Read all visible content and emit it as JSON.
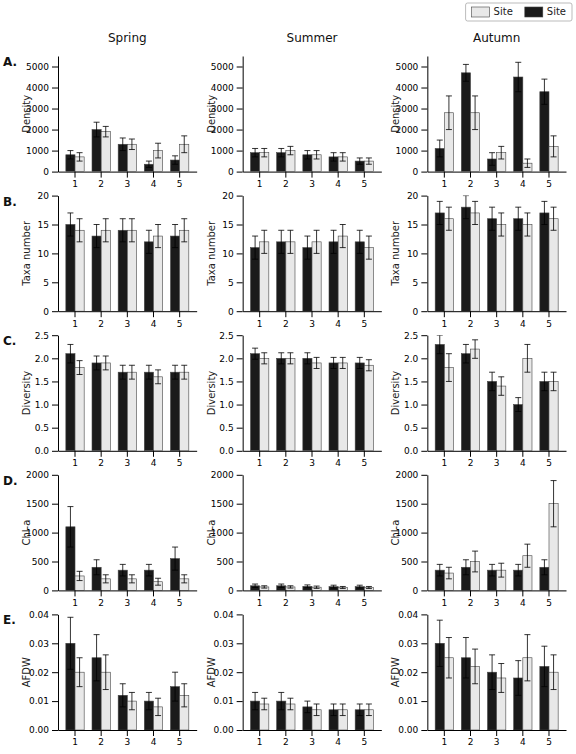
{
  "chart_data": [
    {
      "type": "bar",
      "title": "Spring",
      "annotations": [
        "A."
      ],
      "ylabel": "Density",
      "legend": "upper right",
      "categories": [
        1,
        2,
        3,
        4,
        5
      ],
      "series": [
        {
          "name": "Site",
          "color": "#1a1a1a",
          "values": [
            800,
            2000,
            1300,
            350,
            550
          ],
          "errors": [
            200,
            350,
            300,
            150,
            200
          ]
        },
        {
          "name": "Site",
          "color": "#e8e8e8",
          "values": [
            700,
            1900,
            1300,
            1000,
            1300
          ],
          "errors": [
            200,
            250,
            250,
            350,
            400
          ]
        }
      ],
      "ylim": [
        0,
        5500
      ],
      "yticks": [
        0,
        1000,
        2000,
        3000,
        4000,
        5000
      ]
    },
    {
      "type": "bar",
      "title": "Summer",
      "ylabel": "Density",
      "categories": [
        1,
        2,
        3,
        4,
        5
      ],
      "series": [
        {
          "name": "Site",
          "color": "#1a1a1a",
          "values": [
            900,
            900,
            800,
            700,
            500
          ],
          "errors": [
            200,
            200,
            200,
            200,
            150
          ]
        },
        {
          "name": "Site",
          "color": "#e8e8e8",
          "values": [
            900,
            1000,
            800,
            700,
            500
          ],
          "errors": [
            200,
            200,
            200,
            200,
            150
          ]
        }
      ],
      "ylim": [
        0,
        5500
      ],
      "yticks": [
        0,
        1000,
        2000,
        3000,
        4000,
        5000
      ]
    },
    {
      "type": "bar",
      "title": "Autumn",
      "ylabel": "Density",
      "categories": [
        1,
        2,
        3,
        4,
        5
      ],
      "series": [
        {
          "name": "Site",
          "color": "#1a1a1a",
          "values": [
            1100,
            4700,
            600,
            4500,
            3800
          ],
          "errors": [
            400,
            400,
            300,
            700,
            600
          ]
        },
        {
          "name": "Site",
          "color": "#e8e8e8",
          "values": [
            2800,
            2800,
            900,
            400,
            1200
          ],
          "errors": [
            800,
            800,
            300,
            200,
            500
          ]
        }
      ],
      "ylim": [
        0,
        5500
      ],
      "yticks": [
        0,
        1000,
        2000,
        3000,
        4000,
        5000
      ]
    },
    {
      "type": "bar",
      "annotations": [
        "B."
      ],
      "ylabel": "Taxa number",
      "categories": [
        1,
        2,
        3,
        4,
        5
      ],
      "series": [
        {
          "name": "Site",
          "color": "#1a1a1a",
          "values": [
            15,
            13,
            14,
            12,
            13
          ],
          "errors": [
            2,
            2,
            2,
            2,
            2
          ]
        },
        {
          "name": "Site",
          "color": "#e8e8e8",
          "values": [
            14,
            14,
            14,
            13,
            14
          ],
          "errors": [
            2,
            2,
            2,
            2,
            2
          ]
        }
      ],
      "ylim": [
        0,
        20
      ],
      "yticks": [
        0,
        5,
        10,
        15,
        20
      ]
    },
    {
      "type": "bar",
      "ylabel": "Taxa number",
      "categories": [
        1,
        2,
        3,
        4,
        5
      ],
      "series": [
        {
          "name": "Site",
          "color": "#1a1a1a",
          "values": [
            11,
            12,
            11,
            12,
            12
          ],
          "errors": [
            2,
            2,
            2,
            2,
            2
          ]
        },
        {
          "name": "Site",
          "color": "#e8e8e8",
          "values": [
            12,
            12,
            12,
            13,
            11
          ],
          "errors": [
            2,
            2,
            2,
            2,
            2
          ]
        }
      ],
      "ylim": [
        0,
        20
      ],
      "yticks": [
        0,
        5,
        10,
        15,
        20
      ]
    },
    {
      "type": "bar",
      "ylabel": "Taxa number",
      "categories": [
        1,
        2,
        3,
        4,
        5
      ],
      "series": [
        {
          "name": "Site",
          "color": "#1a1a1a",
          "values": [
            17,
            18,
            16,
            16,
            17
          ],
          "errors": [
            2,
            2,
            2,
            2,
            2
          ]
        },
        {
          "name": "Site",
          "color": "#e8e8e8",
          "values": [
            16,
            17,
            15,
            15,
            16
          ],
          "errors": [
            2,
            2,
            2,
            2,
            2
          ]
        }
      ],
      "ylim": [
        0,
        20
      ],
      "yticks": [
        0,
        5,
        10,
        15,
        20
      ]
    },
    {
      "type": "bar",
      "annotations": [
        "C."
      ],
      "ylabel": "Diversity",
      "categories": [
        1,
        2,
        3,
        4,
        5
      ],
      "series": [
        {
          "name": "Site",
          "color": "#1a1a1a",
          "values": [
            2.1,
            1.9,
            1.7,
            1.7,
            1.7
          ],
          "errors": [
            0.2,
            0.15,
            0.15,
            0.15,
            0.15
          ]
        },
        {
          "name": "Site",
          "color": "#e8e8e8",
          "values": [
            1.8,
            1.9,
            1.7,
            1.6,
            1.7
          ],
          "errors": [
            0.15,
            0.15,
            0.15,
            0.15,
            0.15
          ]
        }
      ],
      "ylim": [
        0,
        2.5
      ],
      "yticks": [
        {
          "value": 0,
          "label": "0.0"
        },
        0.5,
        {
          "value": 1,
          "label": "1.0"
        },
        1.5,
        {
          "value": 2,
          "label": "2.0"
        },
        2.5
      ]
    },
    {
      "type": "bar",
      "ylabel": "Diversity",
      "categories": [
        1,
        2,
        3,
        4,
        5
      ],
      "series": [
        {
          "name": "Site",
          "color": "#1a1a1a",
          "values": [
            2.1,
            2.0,
            2.0,
            1.9,
            1.9
          ],
          "errors": [
            0.12,
            0.12,
            0.12,
            0.12,
            0.12
          ]
        },
        {
          "name": "Site",
          "color": "#e8e8e8",
          "values": [
            2.0,
            2.0,
            1.9,
            1.9,
            1.85
          ],
          "errors": [
            0.12,
            0.12,
            0.12,
            0.12,
            0.12
          ]
        }
      ],
      "ylim": [
        0,
        2.5
      ],
      "yticks": [
        {
          "value": 0,
          "label": "0.0"
        },
        0.5,
        {
          "value": 1,
          "label": "1.0"
        },
        1.5,
        {
          "value": 2,
          "label": "2.0"
        },
        2.5
      ]
    },
    {
      "type": "bar",
      "ylabel": "Diversity",
      "categories": [
        1,
        2,
        3,
        4,
        5
      ],
      "series": [
        {
          "name": "Site",
          "color": "#1a1a1a",
          "values": [
            2.3,
            2.1,
            1.5,
            1.0,
            1.5
          ],
          "errors": [
            0.2,
            0.2,
            0.2,
            0.15,
            0.2
          ]
        },
        {
          "name": "Site",
          "color": "#e8e8e8",
          "values": [
            1.8,
            2.2,
            1.4,
            2.0,
            1.5
          ],
          "errors": [
            0.3,
            0.2,
            0.2,
            0.3,
            0.2
          ]
        }
      ],
      "ylim": [
        0,
        2.5
      ],
      "yticks": [
        {
          "value": 0,
          "label": "0.0"
        },
        0.5,
        {
          "value": 1,
          "label": "1.0"
        },
        1.5,
        {
          "value": 2,
          "label": "2.0"
        },
        2.5
      ]
    },
    {
      "type": "bar",
      "annotations": [
        "D."
      ],
      "ylabel": "Chl-a",
      "categories": [
        1,
        2,
        3,
        4,
        5
      ],
      "series": [
        {
          "name": "Site",
          "color": "#1a1a1a",
          "values": [
            1100,
            400,
            350,
            350,
            550
          ],
          "errors": [
            350,
            130,
            100,
            100,
            200
          ]
        },
        {
          "name": "Site",
          "color": "#e8e8e8",
          "values": [
            250,
            200,
            200,
            150,
            200
          ],
          "errors": [
            80,
            70,
            70,
            60,
            70
          ]
        }
      ],
      "ylim": [
        0,
        2000
      ],
      "yticks": [
        0,
        500,
        1000,
        1500,
        2000
      ]
    },
    {
      "type": "bar",
      "ylabel": "Chl-a",
      "categories": [
        1,
        2,
        3,
        4,
        5
      ],
      "series": [
        {
          "name": "Site",
          "color": "#1a1a1a",
          "values": [
            80,
            80,
            70,
            65,
            65
          ],
          "errors": [
            30,
            30,
            25,
            25,
            25
          ]
        },
        {
          "name": "Site",
          "color": "#e8e8e8",
          "values": [
            60,
            60,
            55,
            50,
            50
          ],
          "errors": [
            20,
            20,
            20,
            18,
            18
          ]
        }
      ],
      "ylim": [
        0,
        2000
      ],
      "yticks": [
        0,
        500,
        1000,
        1500,
        2000
      ]
    },
    {
      "type": "bar",
      "ylabel": "Chl-a",
      "categories": [
        1,
        2,
        3,
        4,
        5
      ],
      "series": [
        {
          "name": "Site",
          "color": "#1a1a1a",
          "values": [
            350,
            400,
            350,
            350,
            400
          ],
          "errors": [
            100,
            130,
            100,
            100,
            130
          ]
        },
        {
          "name": "Site",
          "color": "#e8e8e8",
          "values": [
            300,
            500,
            350,
            600,
            1500
          ],
          "errors": [
            100,
            180,
            120,
            200,
            400
          ]
        }
      ],
      "ylim": [
        0,
        2000
      ],
      "yticks": [
        0,
        500,
        1000,
        1500,
        2000
      ]
    },
    {
      "type": "bar",
      "annotations": [
        "E."
      ],
      "ylabel": "AFDW",
      "categories": [
        1,
        2,
        3,
        4,
        5
      ],
      "series": [
        {
          "name": "Site",
          "color": "#1a1a1a",
          "values": [
            0.03,
            0.025,
            0.012,
            0.01,
            0.015
          ],
          "errors": [
            0.009,
            0.008,
            0.004,
            0.003,
            0.005
          ]
        },
        {
          "name": "Site",
          "color": "#e8e8e8",
          "values": [
            0.02,
            0.02,
            0.01,
            0.008,
            0.012
          ],
          "errors": [
            0.005,
            0.006,
            0.003,
            0.003,
            0.004
          ]
        }
      ],
      "ylim": [
        0,
        0.04
      ],
      "yticks": [
        {
          "value": 0,
          "label": "0.00"
        },
        0.01,
        0.02,
        0.03,
        0.04
      ]
    },
    {
      "type": "bar",
      "ylabel": "AFDW",
      "categories": [
        1,
        2,
        3,
        4,
        5
      ],
      "series": [
        {
          "name": "Site",
          "color": "#1a1a1a",
          "values": [
            0.01,
            0.01,
            0.008,
            0.007,
            0.007
          ],
          "errors": [
            0.003,
            0.003,
            0.002,
            0.002,
            0.002
          ]
        },
        {
          "name": "Site",
          "color": "#e8e8e8",
          "values": [
            0.009,
            0.009,
            0.007,
            0.007,
            0.007
          ],
          "errors": [
            0.002,
            0.002,
            0.002,
            0.002,
            0.002
          ]
        }
      ],
      "ylim": [
        0,
        0.04
      ],
      "yticks": [
        {
          "value": 0,
          "label": "0.00"
        },
        0.01,
        0.02,
        0.03,
        0.04
      ]
    },
    {
      "type": "bar",
      "ylabel": "AFDW",
      "categories": [
        1,
        2,
        3,
        4,
        5
      ],
      "series": [
        {
          "name": "Site",
          "color": "#1a1a1a",
          "values": [
            0.03,
            0.025,
            0.02,
            0.018,
            0.022
          ],
          "errors": [
            0.008,
            0.007,
            0.006,
            0.006,
            0.007
          ]
        },
        {
          "name": "Site",
          "color": "#e8e8e8",
          "values": [
            0.025,
            0.022,
            0.018,
            0.025,
            0.02
          ],
          "errors": [
            0.007,
            0.006,
            0.005,
            0.008,
            0.006
          ]
        }
      ],
      "ylim": [
        0,
        0.04
      ],
      "yticks": [
        {
          "value": 0,
          "label": "0.00"
        },
        0.01,
        0.02,
        0.03,
        0.04
      ]
    }
  ]
}
